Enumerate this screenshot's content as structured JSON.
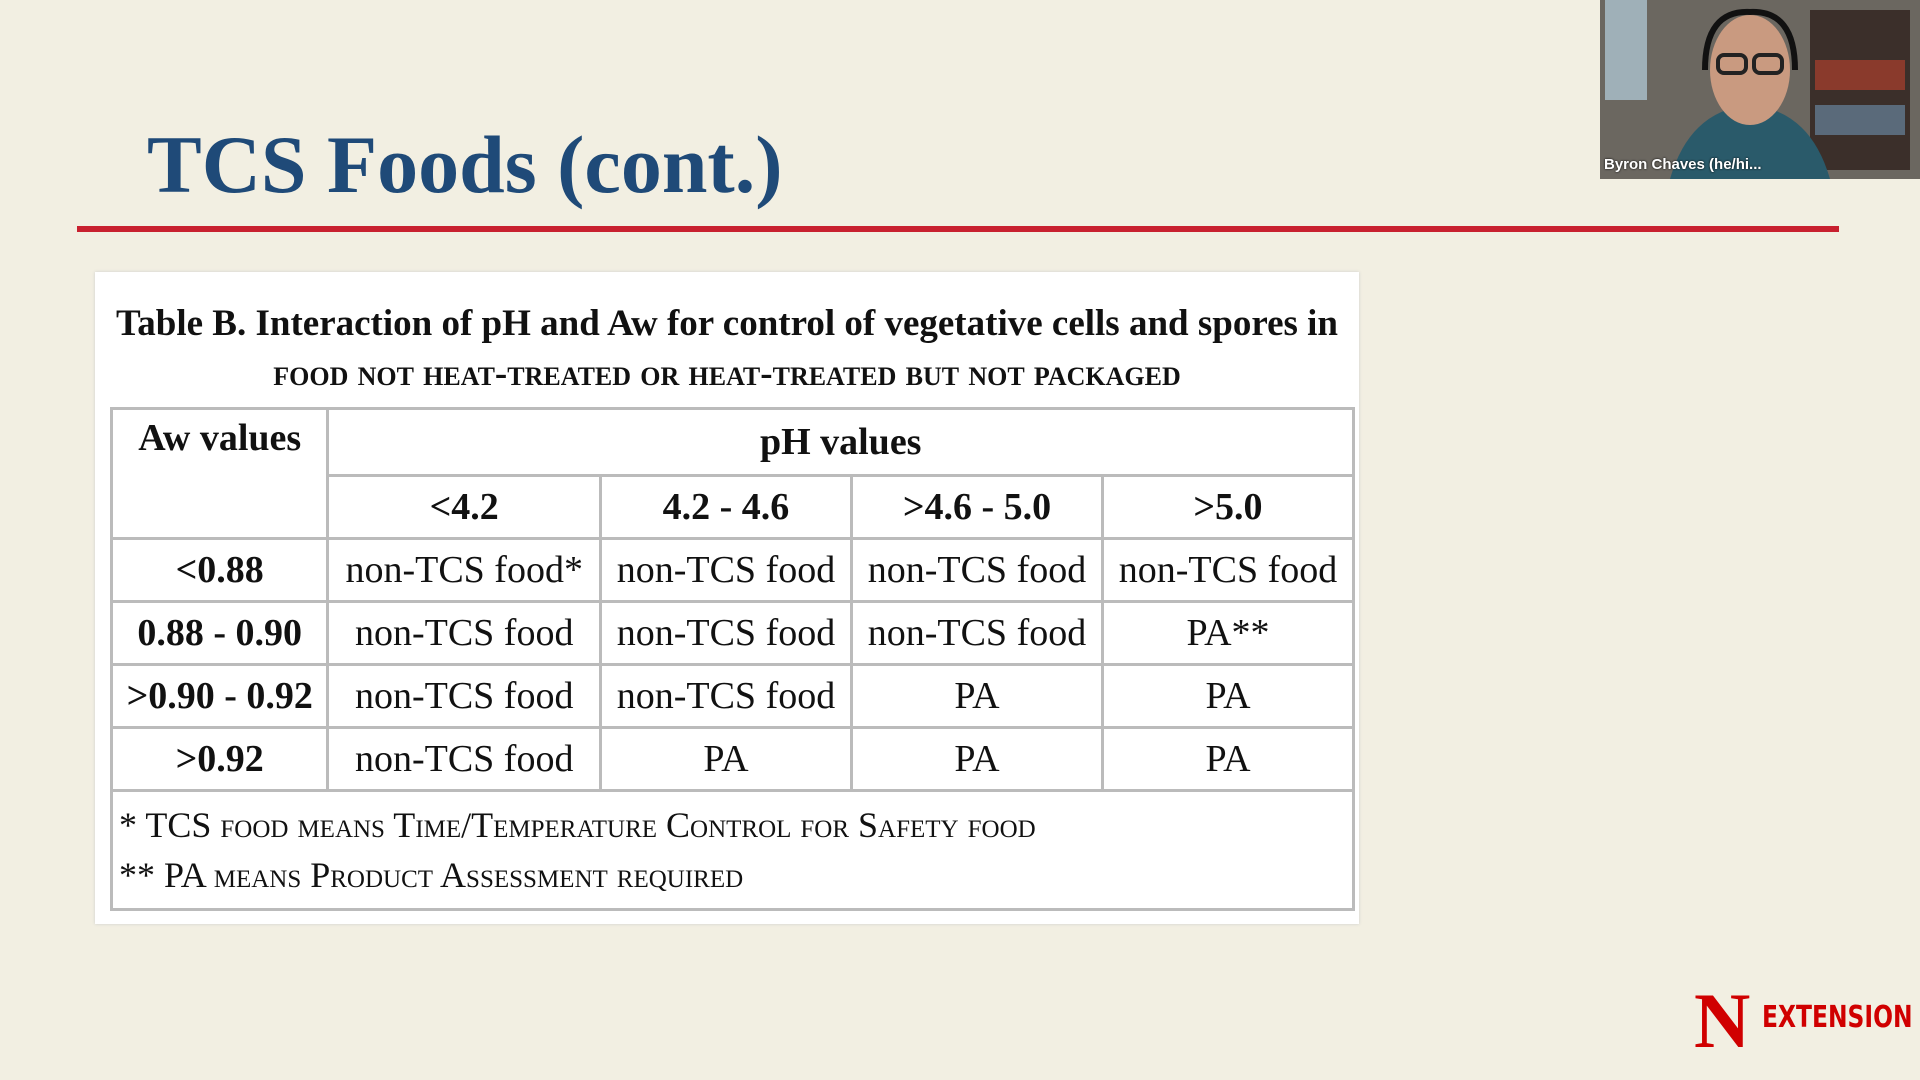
{
  "slide": {
    "title": "TCS Foods (cont.)"
  },
  "table": {
    "caption": [
      "Table B. Interaction of pH and Aw for control of vegetative cells and spores in",
      "food not heat-treated or heat-treated but not packaged"
    ],
    "row_header": "Aw values",
    "column_group": "pH values",
    "columns": [
      "<4.2",
      "4.2 - 4.6",
      ">4.6 - 5.0",
      ">5.0"
    ],
    "rows": [
      [
        "<0.88",
        "non-TCS food*",
        "non-TCS food",
        "non-TCS food",
        "non-TCS food"
      ],
      [
        "0.88 - 0.90",
        "non-TCS food",
        "non-TCS food",
        "non-TCS food",
        "PA**"
      ],
      [
        ">0.90 - 0.92",
        "non-TCS food",
        "non-TCS food",
        "PA",
        "PA"
      ],
      [
        ">0.92",
        "non-TCS food",
        "PA",
        "PA",
        "PA"
      ]
    ],
    "footnotes": [
      "* TCS food means Time/Temperature Control for Safety food",
      "** PA means Product Assessment required"
    ]
  },
  "video": {
    "participant": "Byron Chaves (he/hi..."
  },
  "logo": {
    "letter": "N",
    "text": "EXTENSION"
  }
}
